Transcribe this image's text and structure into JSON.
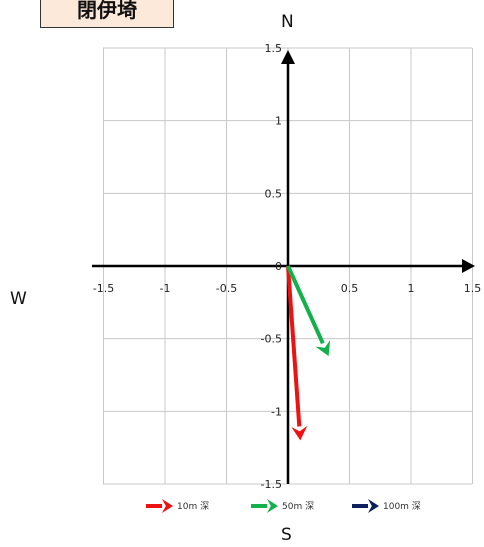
{
  "title": "閉伊埼",
  "compass": {
    "north": "N",
    "south": "S",
    "west": "W"
  },
  "colors": {
    "10m": "#ee1111",
    "50m": "#13b04b",
    "100m": "#0d1f5c",
    "grid": "#c8c8c8",
    "axis": "#000000"
  },
  "chart_data": {
    "type": "vector",
    "title": "閉伊埼",
    "xlim": [
      -1.5,
      1.5
    ],
    "ylim": [
      -1.5,
      1.5
    ],
    "x_ticks": [
      -1.5,
      -1,
      -0.5,
      0,
      0.5,
      1,
      1.5
    ],
    "y_ticks": [
      -1.5,
      -1,
      -0.5,
      0,
      0.5,
      1,
      1.5
    ],
    "x_tick_labels": [
      "-1.5",
      "-1",
      "-0.5",
      "0",
      "0.5",
      "1",
      "1.5"
    ],
    "y_tick_labels": [
      "-1.5",
      "-1",
      "-0.5",
      "0",
      "0.5",
      "1",
      "1.5"
    ],
    "grid": true,
    "legend_position": "bottom",
    "series": [
      {
        "name": "10m 深",
        "color": "#ee1111",
        "x": 0.1,
        "y": -1.2
      },
      {
        "name": "50m 深",
        "color": "#13b04b",
        "x": 0.33,
        "y": -0.62
      },
      {
        "name": "100m 深",
        "color": "#0d1f5c",
        "x": 0,
        "y": 0
      }
    ]
  }
}
